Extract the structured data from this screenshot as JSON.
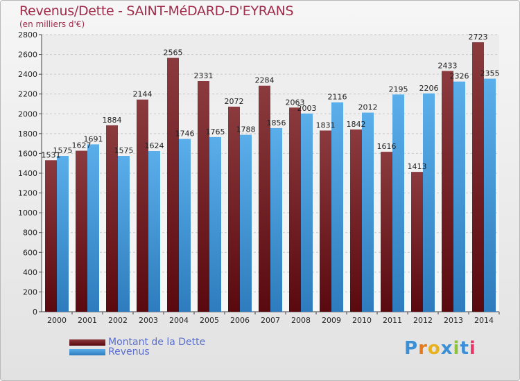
{
  "title": "Revenus/Dette - SAINT-MéDARD-D'EYRANS",
  "subtitle": "(en milliers d'€)",
  "colors": {
    "debt_top": "#8b3a3e",
    "debt_bottom": "#5a0a0e",
    "revenue_top": "#5aaeea",
    "revenue_bottom": "#2e7cbd",
    "title": "#a02b4a",
    "legend_text": "#5a6fd0"
  },
  "legend": [
    {
      "label": "Montant de la Dette",
      "series": "debt"
    },
    {
      "label": "Revenus",
      "series": "revenue"
    }
  ],
  "logo": {
    "text": "Proxiti",
    "letter_colors": [
      "#3a8fd6",
      "#e87a1e",
      "#e8b21e",
      "#3a8fd6",
      "#8cc43c",
      "#3a8fd6",
      "#e83a6a"
    ]
  },
  "chart_data": {
    "type": "bar",
    "title": "Revenus/Dette - SAINT-MéDARD-D'EYRANS",
    "ylabel": "(en milliers d'€)",
    "categories": [
      "2000",
      "2001",
      "2002",
      "2003",
      "2004",
      "2005",
      "2006",
      "2007",
      "2008",
      "2009",
      "2010",
      "2011",
      "2012",
      "2013",
      "2014"
    ],
    "series": [
      {
        "name": "Montant de la Dette",
        "values": [
          1531,
          1627,
          1884,
          2144,
          2565,
          2331,
          2072,
          2284,
          2063,
          1831,
          1842,
          1616,
          1413,
          2433,
          2723
        ],
        "labels": [
          "1531",
          "1627",
          "1884",
          "2144",
          "2565",
          "2331",
          "2072",
          "2284",
          "2063",
          "1831",
          "1842",
          "1616",
          "1413",
          "2433",
          "2723"
        ]
      },
      {
        "name": "Revenus",
        "values": [
          1575,
          1691,
          1575,
          1624,
          1746,
          1765,
          1788,
          1856,
          2003,
          2116,
          2012,
          2195,
          2206,
          2326,
          2355
        ],
        "labels": [
          "1575",
          "1691",
          "1575",
          "1624",
          "1746",
          "1765",
          "1788",
          "1856",
          "2003",
          "2116",
          "2012",
          "2195",
          "2206",
          "2326",
          "2355"
        ]
      }
    ],
    "yticks": [
      0,
      200,
      400,
      600,
      800,
      1000,
      1200,
      1400,
      1600,
      1800,
      2000,
      2200,
      2400,
      2600,
      2800
    ],
    "ylim": [
      0,
      2800
    ],
    "grid": true,
    "legend_position": "bottom-left"
  }
}
